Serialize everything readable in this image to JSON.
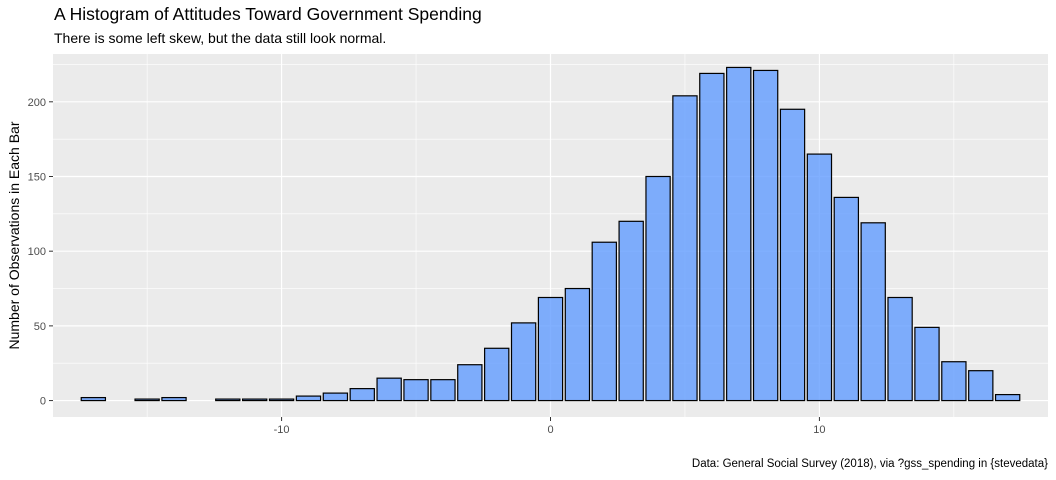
{
  "chart_data": {
    "type": "bar",
    "title": "A Histogram of Attitudes Toward Government Spending",
    "subtitle": "There is some left skew, but the data still look normal.",
    "caption": "Data: General Social Survey (2018), via ?gss_spending in {stevedata}",
    "xlabel": "",
    "ylabel": "Number of Observations in Each Bar",
    "xlim": [
      -18.5,
      18.5
    ],
    "ylim": [
      -11,
      232
    ],
    "x_ticks": [
      -10,
      0,
      10
    ],
    "x_tick_labels": [
      "-10",
      "0",
      "10"
    ],
    "y_ticks": [
      0,
      50,
      100,
      150,
      200
    ],
    "y_tick_labels": [
      "0",
      "50",
      "100",
      "150",
      "200"
    ],
    "grid": true,
    "bin_width": 1,
    "bar_color": "#619CFF",
    "bar_outline": "#000000",
    "panel_background": "#EBEBEB",
    "x": [
      -17,
      -16,
      -15,
      -14,
      -13,
      -12,
      -11,
      -10,
      -9,
      -8,
      -7,
      -6,
      -5,
      -4,
      -3,
      -2,
      -1,
      0,
      1,
      2,
      3,
      4,
      5,
      6,
      7,
      8,
      9,
      10,
      11,
      12,
      13,
      14,
      15,
      16,
      17
    ],
    "values": [
      2,
      0,
      1,
      2,
      0,
      1,
      1,
      1,
      3,
      5,
      8,
      15,
      14,
      14,
      24,
      35,
      52,
      69,
      75,
      106,
      120,
      150,
      204,
      219,
      223,
      221,
      195,
      165,
      136,
      119,
      69,
      49,
      26,
      20,
      4
    ]
  }
}
